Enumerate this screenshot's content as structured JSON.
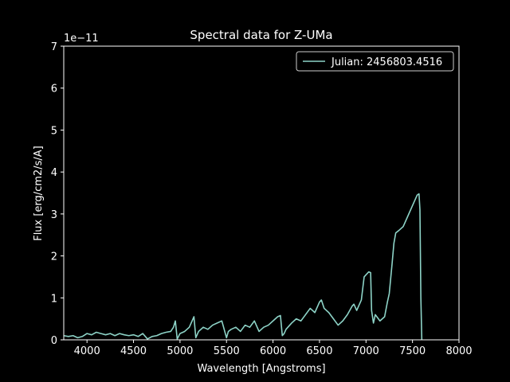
{
  "chart_data": {
    "type": "line",
    "title": "Spectral data for Z-UMa",
    "xlabel": "Wavelength [Angstroms]",
    "ylabel": "Flux [erg/cm2/s/A]",
    "offset_label": "1e−11",
    "xlim": [
      3750,
      8000
    ],
    "ylim": [
      0,
      7
    ],
    "xticks": [
      4000,
      4500,
      5000,
      5500,
      6000,
      6500,
      7000,
      7500,
      8000
    ],
    "yticks": [
      0,
      1,
      2,
      3,
      4,
      5,
      6,
      7
    ],
    "legend_position": "upper right",
    "line_color": "#8dd3c7",
    "series": [
      {
        "name": "Julian: 2456803.4516",
        "x": [
          3750,
          3800,
          3850,
          3900,
          3950,
          4000,
          4050,
          4100,
          4150,
          4200,
          4250,
          4300,
          4350,
          4400,
          4450,
          4500,
          4550,
          4600,
          4650,
          4700,
          4750,
          4800,
          4850,
          4900,
          4930,
          4950,
          4970,
          5000,
          5050,
          5100,
          5130,
          5150,
          5170,
          5200,
          5250,
          5300,
          5350,
          5400,
          5450,
          5500,
          5520,
          5550,
          5600,
          5650,
          5700,
          5750,
          5800,
          5830,
          5850,
          5900,
          5950,
          6000,
          6050,
          6080,
          6100,
          6120,
          6140,
          6200,
          6250,
          6300,
          6350,
          6400,
          6450,
          6500,
          6520,
          6550,
          6600,
          6650,
          6700,
          6750,
          6800,
          6850,
          6870,
          6900,
          6950,
          6980,
          7000,
          7030,
          7050,
          7060,
          7080,
          7100,
          7150,
          7200,
          7230,
          7250,
          7280,
          7300,
          7320,
          7350,
          7400,
          7450,
          7500,
          7550,
          7570,
          7580,
          7590,
          7600
        ],
        "y": [
          0.1,
          0.08,
          0.1,
          0.05,
          0.08,
          0.15,
          0.12,
          0.18,
          0.15,
          0.12,
          0.15,
          0.1,
          0.15,
          0.12,
          0.1,
          0.12,
          0.08,
          0.15,
          0.02,
          0.08,
          0.1,
          0.15,
          0.18,
          0.2,
          0.3,
          0.45,
          0.02,
          0.15,
          0.2,
          0.3,
          0.45,
          0.55,
          0.05,
          0.2,
          0.3,
          0.25,
          0.35,
          0.4,
          0.45,
          0.05,
          0.2,
          0.25,
          0.3,
          0.2,
          0.35,
          0.3,
          0.45,
          0.3,
          0.2,
          0.3,
          0.35,
          0.45,
          0.55,
          0.58,
          0.1,
          0.15,
          0.25,
          0.4,
          0.5,
          0.45,
          0.6,
          0.75,
          0.65,
          0.9,
          0.95,
          0.75,
          0.65,
          0.5,
          0.35,
          0.45,
          0.6,
          0.8,
          0.85,
          0.7,
          0.95,
          1.5,
          1.55,
          1.62,
          1.6,
          0.7,
          0.4,
          0.6,
          0.45,
          0.55,
          0.9,
          1.1,
          1.8,
          2.3,
          2.55,
          2.6,
          2.7,
          2.95,
          3.2,
          3.45,
          3.48,
          3.1,
          1.0,
          0.0
        ]
      }
    ]
  }
}
